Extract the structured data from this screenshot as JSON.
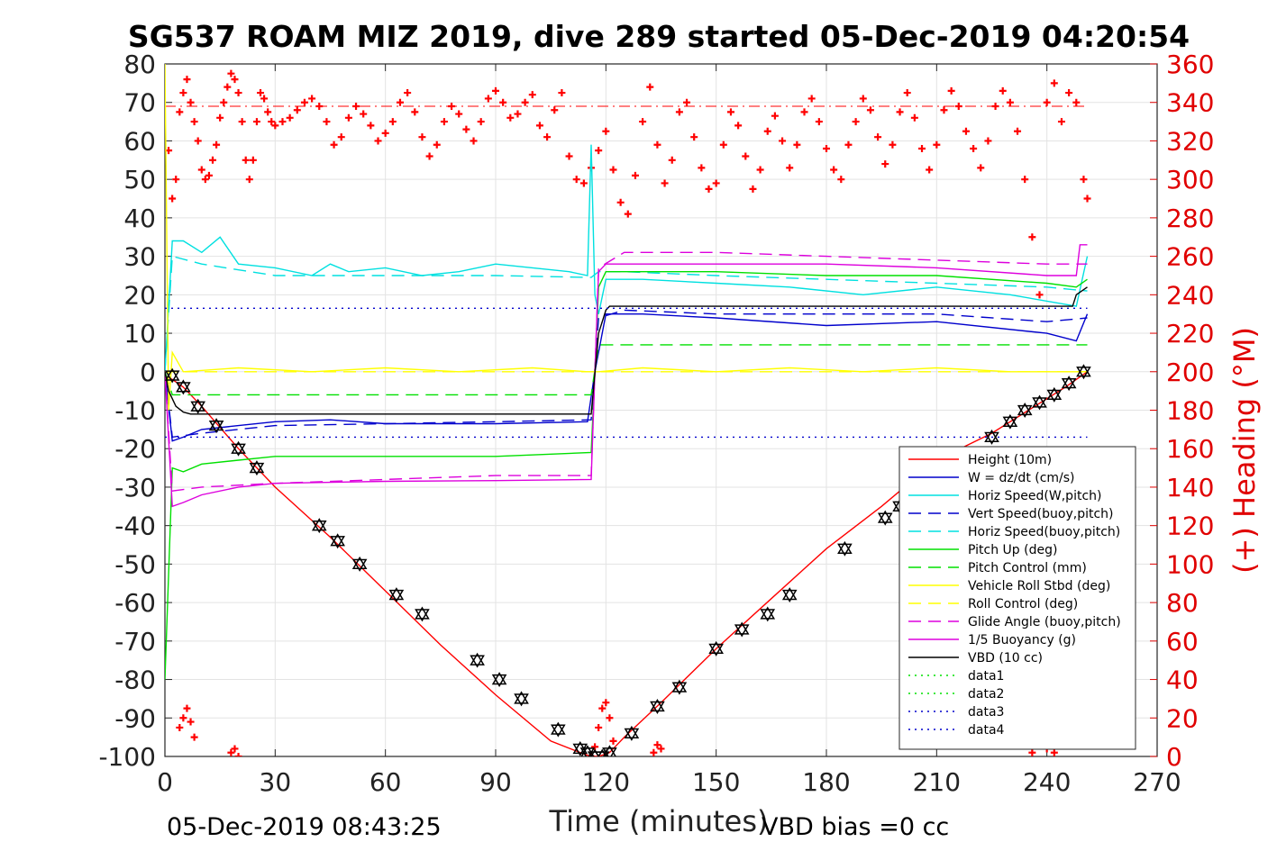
{
  "chart_data": {
    "type": "line",
    "title": "SG537 ROAM MIZ 2019, dive 289 started 05-Dec-2019 04:20:54",
    "xlabel": "Time (minutes)",
    "ylabel_right": "(+) Heading (°M)",
    "xlim": [
      0,
      270
    ],
    "ylim_left": [
      -100,
      80
    ],
    "ylim_right": [
      0,
      360
    ],
    "xticks": [
      0,
      30,
      60,
      90,
      120,
      150,
      180,
      210,
      240,
      270
    ],
    "yticks_left": [
      80,
      70,
      60,
      50,
      40,
      30,
      20,
      10,
      0,
      -10,
      -20,
      -30,
      -40,
      -50,
      -60,
      -70,
      -80,
      -90,
      -100
    ],
    "yticks_right": [
      360,
      340,
      320,
      300,
      280,
      260,
      240,
      220,
      200,
      180,
      160,
      140,
      120,
      100,
      80,
      60,
      40,
      20,
      0
    ],
    "grid": true,
    "legend_position": "lower-right",
    "footer_left": "05-Dec-2019 08:43:25",
    "footer_right": "VBD bias =0 cc",
    "series": [
      {
        "name": "Height (10m)",
        "color": "#ff0000",
        "style": "solid",
        "axis": "left",
        "x": [
          0,
          2,
          5,
          10,
          20,
          30,
          45,
          60,
          75,
          90,
          105,
          113,
          116,
          118,
          121,
          125,
          135,
          150,
          165,
          180,
          195,
          210,
          225,
          235,
          245,
          251
        ],
        "y": [
          -1,
          -2,
          -4,
          -9,
          -20,
          -30,
          -43,
          -57,
          -71,
          -84,
          -96,
          -99,
          -100,
          -100,
          -99,
          -95,
          -86,
          -72,
          -59,
          -46,
          -35,
          -23,
          -16,
          -10,
          -4,
          0
        ]
      },
      {
        "name": "W = dz/dt (cm/s)",
        "color": "#0000cc",
        "style": "solid",
        "axis": "left",
        "x": [
          0,
          2,
          5,
          10,
          20,
          30,
          45,
          60,
          90,
          115,
          117,
          120,
          130,
          150,
          180,
          210,
          240,
          248,
          251
        ],
        "y": [
          0,
          -18,
          -17,
          -15,
          -14,
          -13,
          -12.5,
          -13.5,
          -13.5,
          -13,
          0,
          15,
          15,
          14,
          12,
          13,
          10,
          8,
          15
        ]
      },
      {
        "name": "Horiz Speed(W,pitch)",
        "color": "#00e0e0",
        "style": "solid",
        "axis": "left",
        "x": [
          0,
          2,
          5,
          10,
          15,
          20,
          30,
          40,
          45,
          50,
          60,
          70,
          80,
          90,
          100,
          110,
          115,
          116,
          117,
          118,
          120,
          130,
          150,
          170,
          190,
          210,
          230,
          248,
          251
        ],
        "y": [
          0,
          34,
          34,
          31,
          35,
          28,
          27,
          25,
          28,
          26,
          27,
          25,
          26,
          28,
          27,
          26,
          25,
          59,
          20,
          15,
          24,
          24,
          23,
          22,
          20,
          22,
          20,
          17,
          30
        ]
      },
      {
        "name": "Vert Speed(buoy,pitch)",
        "color": "#0000cc",
        "style": "dash",
        "axis": "left",
        "x": [
          0,
          2,
          10,
          30,
          60,
          90,
          116,
          118,
          125,
          150,
          180,
          210,
          240,
          251
        ],
        "y": [
          0,
          -17,
          -16,
          -14,
          -13.5,
          -13,
          -12.5,
          14,
          16,
          15,
          15,
          15,
          13,
          14
        ]
      },
      {
        "name": "Horiz Speed(buoy,pitch)",
        "color": "#00e0e0",
        "style": "dash",
        "axis": "left",
        "x": [
          0,
          2,
          10,
          30,
          60,
          90,
          116,
          118,
          125,
          150,
          180,
          210,
          240,
          251
        ],
        "y": [
          0,
          30,
          28,
          25,
          25,
          25,
          24.5,
          26,
          26,
          25,
          24,
          23,
          22,
          21
        ]
      },
      {
        "name": "Pitch Up (deg)",
        "color": "#00e000",
        "style": "solid",
        "axis": "left",
        "x": [
          0,
          2,
          5,
          10,
          20,
          30,
          60,
          90,
          116,
          117,
          118,
          120,
          150,
          180,
          210,
          240,
          248,
          251
        ],
        "y": [
          -80,
          -25,
          -26,
          -24,
          -23,
          -22,
          -22,
          -22,
          -21,
          0,
          22,
          26,
          26,
          25,
          25,
          23,
          22,
          24
        ]
      },
      {
        "name": "Pitch Control (mm)",
        "color": "#00e000",
        "style": "dash",
        "axis": "left",
        "x": [
          0,
          2,
          20,
          116,
          118,
          251
        ],
        "y": [
          0,
          -6,
          -6,
          -6,
          7,
          7
        ]
      },
      {
        "name": "Vehicle Roll Stbd (deg)",
        "color": "#ffff00",
        "style": "solid",
        "axis": "left",
        "x": [
          0,
          1,
          2,
          5,
          20,
          40,
          60,
          80,
          100,
          115,
          117,
          118,
          130,
          150,
          170,
          190,
          210,
          230,
          245,
          251
        ],
        "y": [
          80,
          -10,
          5,
          0,
          1,
          0,
          1,
          0,
          1,
          0,
          0,
          0,
          1,
          0,
          1,
          0,
          1,
          0,
          0,
          0
        ]
      },
      {
        "name": "Roll Control (deg)",
        "color": "#ffff00",
        "style": "dash",
        "axis": "left",
        "x": [
          0,
          2,
          116,
          118,
          251
        ],
        "y": [
          0,
          0,
          0,
          0,
          0
        ]
      },
      {
        "name": "Glide Angle (buoy,pitch)",
        "color": "#dd00dd",
        "style": "dash",
        "axis": "left",
        "x": [
          0,
          2,
          10,
          30,
          60,
          90,
          116,
          118,
          125,
          150,
          180,
          210,
          240,
          251
        ],
        "y": [
          0,
          -31,
          -30,
          -29,
          -28,
          -27,
          -27,
          27,
          31,
          31,
          30,
          29,
          28,
          28
        ]
      },
      {
        "name": "1/5 Buoyancy (g)",
        "color": "#dd00dd",
        "style": "solid",
        "axis": "left",
        "x": [
          0,
          2,
          5,
          10,
          20,
          30,
          60,
          90,
          116,
          117,
          118,
          120,
          150,
          180,
          210,
          240,
          248,
          249,
          251
        ],
        "y": [
          0,
          -35,
          -34,
          -32,
          -30,
          -29,
          -28.5,
          -28.3,
          -28,
          0,
          26,
          28,
          28,
          28,
          27,
          25,
          25,
          33,
          33
        ]
      },
      {
        "name": "VBD (10 cc)",
        "color": "#000000",
        "style": "solid",
        "axis": "left",
        "x": [
          0,
          1,
          3,
          5,
          7,
          116,
          118,
          120,
          121,
          247,
          248,
          251
        ],
        "y": [
          0,
          -5,
          -9,
          -10.5,
          -11,
          -11,
          10,
          16,
          17,
          17,
          20,
          22
        ]
      },
      {
        "name": "data1",
        "color": "#00e000",
        "style": "dot",
        "axis": "left",
        "x": [],
        "y": []
      },
      {
        "name": "data2",
        "color": "#00e000",
        "style": "dot",
        "axis": "left",
        "x": [],
        "y": []
      },
      {
        "name": "data3",
        "color": "#0000cc",
        "style": "dot",
        "axis": "left",
        "x": [
          0,
          251
        ],
        "y": [
          16.5,
          16.5
        ]
      },
      {
        "name": "data4",
        "color": "#0000cc",
        "style": "dot",
        "axis": "left",
        "x": [
          0,
          251
        ],
        "y": [
          -17,
          -17
        ]
      }
    ],
    "heading_reference": {
      "color": "#ff0000",
      "style": "dashdot",
      "axis": "right",
      "x": [
        0,
        251
      ],
      "y": [
        338,
        338
      ]
    },
    "heading_points": {
      "color": "#ff0000",
      "marker": "plus",
      "axis": "right",
      "x": [
        1,
        2,
        3,
        4,
        5,
        6,
        7,
        8,
        9,
        10,
        11,
        12,
        13,
        14,
        15,
        16,
        17,
        18,
        19,
        20,
        21,
        22,
        23,
        24,
        25,
        26,
        27,
        28,
        29,
        30,
        32,
        34,
        36,
        38,
        40,
        42,
        44,
        46,
        48,
        50,
        52,
        54,
        56,
        58,
        60,
        62,
        64,
        66,
        68,
        70,
        72,
        74,
        76,
        78,
        80,
        82,
        84,
        86,
        88,
        90,
        92,
        94,
        96,
        98,
        100,
        102,
        104,
        106,
        108,
        110,
        112,
        114,
        116,
        118,
        120,
        122,
        124,
        126,
        128,
        130,
        132,
        134,
        136,
        138,
        140,
        142,
        144,
        146,
        148,
        150,
        152,
        154,
        156,
        158,
        160,
        162,
        164,
        166,
        168,
        170,
        172,
        174,
        176,
        178,
        180,
        182,
        184,
        186,
        188,
        190,
        192,
        194,
        196,
        198,
        200,
        202,
        204,
        206,
        208,
        210,
        212,
        214,
        216,
        218,
        220,
        222,
        224,
        226,
        228,
        230,
        232,
        234,
        236,
        238,
        240,
        242,
        244,
        246,
        248,
        250,
        251
      ],
      "y": [
        315,
        290,
        300,
        335,
        345,
        352,
        340,
        330,
        320,
        305,
        300,
        302,
        310,
        318,
        332,
        340,
        348,
        355,
        352,
        345,
        330,
        310,
        300,
        310,
        330,
        345,
        342,
        335,
        330,
        328,
        330,
        332,
        336,
        340,
        342,
        338,
        330,
        318,
        322,
        332,
        338,
        334,
        328,
        320,
        324,
        330,
        340,
        345,
        335,
        322,
        312,
        318,
        330,
        338,
        334,
        326,
        320,
        330,
        342,
        346,
        340,
        332,
        334,
        340,
        344,
        328,
        322,
        336,
        345,
        312,
        300,
        298,
        306,
        315,
        325,
        305,
        288,
        282,
        302,
        330,
        348,
        318,
        298,
        310,
        335,
        340,
        322,
        306,
        295,
        298,
        318,
        335,
        328,
        312,
        295,
        305,
        325,
        333,
        320,
        306,
        318,
        335,
        342,
        330,
        316,
        305,
        300,
        318,
        330,
        342,
        336,
        322,
        308,
        318,
        335,
        345,
        332,
        316,
        305,
        318,
        336,
        346,
        338,
        325,
        316,
        306,
        320,
        338,
        346,
        340,
        325,
        300,
        270,
        240,
        340,
        350,
        330,
        345,
        340,
        300,
        290
      ]
    },
    "heading_points_low": {
      "color": "#ff0000",
      "marker": "plus",
      "axis": "right",
      "x": [
        4,
        5,
        6,
        7,
        8,
        18,
        19,
        20,
        116,
        117,
        118,
        119,
        120,
        121,
        122,
        133,
        134,
        135,
        236,
        237,
        238,
        239,
        240,
        241,
        242
      ],
      "y": [
        15,
        20,
        25,
        18,
        10,
        2,
        4,
        0,
        0,
        5,
        15,
        25,
        28,
        20,
        8,
        2,
        6,
        4,
        2,
        8,
        14,
        10,
        4,
        6,
        2
      ]
    },
    "profile_markers": {
      "color": "#000000",
      "marker": "triangle",
      "x": [
        2,
        5,
        9,
        14,
        20,
        25,
        42,
        47,
        53,
        63,
        70,
        85,
        91,
        97,
        107,
        113,
        115,
        117,
        119,
        121,
        127,
        134,
        140,
        150,
        157,
        164,
        170,
        185,
        196,
        200,
        205,
        225,
        230,
        234,
        238,
        242,
        246,
        250
      ],
      "y": [
        -1,
        -4,
        -9,
        -14,
        -20,
        -25,
        -40,
        -44,
        -50,
        -58,
        -63,
        -75,
        -80,
        -85,
        -93,
        -98,
        -99,
        -100,
        -100,
        -99,
        -94,
        -87,
        -82,
        -72,
        -67,
        -63,
        -58,
        -46,
        -38,
        -35,
        -30,
        -17,
        -13,
        -10,
        -8,
        -6,
        -3,
        0
      ]
    }
  }
}
